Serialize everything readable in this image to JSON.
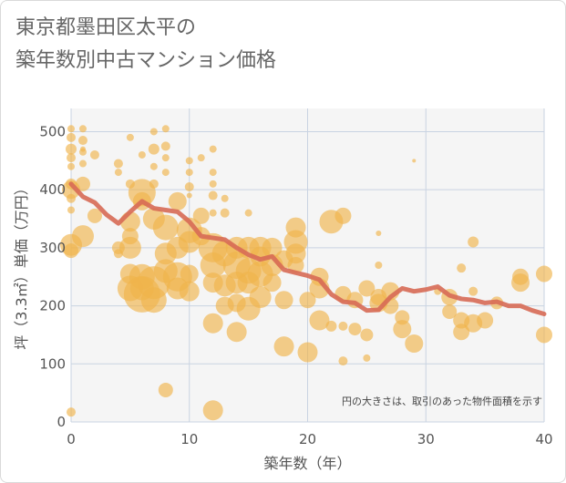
{
  "title_lines": [
    "東京都墨田区太平の",
    "築年数別中古マンション価格"
  ],
  "chart_data": {
    "type": "scatter",
    "xlabel": "築年数（年）",
    "ylabel": "坪（3.3㎡）単価（万円）",
    "xlim": [
      0,
      40
    ],
    "ylim": [
      0,
      540
    ],
    "xticks": [
      0,
      10,
      20,
      30,
      40
    ],
    "yticks": [
      0,
      100,
      200,
      300,
      400,
      500
    ],
    "grid": true,
    "note": "円の大きさは、取引のあった物件面積を示す",
    "colors": {
      "bubble": "#f0b44c",
      "line": "#d76a55",
      "plot_bg": "#f5f5f5",
      "grid": "#c9d3e2"
    },
    "bubble_series": [
      {
        "x": 0,
        "y": 505,
        "s": 4
      },
      {
        "x": 0,
        "y": 490,
        "s": 5
      },
      {
        "x": 0,
        "y": 470,
        "s": 6
      },
      {
        "x": 0,
        "y": 455,
        "s": 5
      },
      {
        "x": 0,
        "y": 440,
        "s": 4
      },
      {
        "x": 0,
        "y": 410,
        "s": 6
      },
      {
        "x": 0,
        "y": 400,
        "s": 10
      },
      {
        "x": 0,
        "y": 385,
        "s": 5
      },
      {
        "x": 0,
        "y": 365,
        "s": 4
      },
      {
        "x": 0,
        "y": 305,
        "s": 12
      },
      {
        "x": 0,
        "y": 295,
        "s": 8
      },
      {
        "x": 0,
        "y": 17,
        "s": 5
      },
      {
        "x": 1,
        "y": 505,
        "s": 4
      },
      {
        "x": 1,
        "y": 485,
        "s": 5
      },
      {
        "x": 1,
        "y": 465,
        "s": 4
      },
      {
        "x": 1,
        "y": 445,
        "s": 4
      },
      {
        "x": 1,
        "y": 410,
        "s": 8
      },
      {
        "x": 1,
        "y": 320,
        "s": 12
      },
      {
        "x": 1,
        "y": 470,
        "s": 3
      },
      {
        "x": 2,
        "y": 460,
        "s": 5
      },
      {
        "x": 2,
        "y": 355,
        "s": 8
      },
      {
        "x": 4,
        "y": 445,
        "s": 5
      },
      {
        "x": 4,
        "y": 430,
        "s": 4
      },
      {
        "x": 4,
        "y": 300,
        "s": 7
      },
      {
        "x": 4,
        "y": 290,
        "s": 5
      },
      {
        "x": 5,
        "y": 490,
        "s": 4
      },
      {
        "x": 5,
        "y": 410,
        "s": 5
      },
      {
        "x": 5,
        "y": 345,
        "s": 11
      },
      {
        "x": 5,
        "y": 320,
        "s": 9
      },
      {
        "x": 5,
        "y": 300,
        "s": 12
      },
      {
        "x": 5,
        "y": 255,
        "s": 11
      },
      {
        "x": 5,
        "y": 230,
        "s": 14
      },
      {
        "x": 6,
        "y": 395,
        "s": 15
      },
      {
        "x": 6,
        "y": 380,
        "s": 10
      },
      {
        "x": 6,
        "y": 460,
        "s": 4
      },
      {
        "x": 6,
        "y": 250,
        "s": 14
      },
      {
        "x": 6,
        "y": 220,
        "s": 20
      },
      {
        "x": 6,
        "y": 230,
        "s": 13
      },
      {
        "x": 7,
        "y": 500,
        "s": 4
      },
      {
        "x": 7,
        "y": 470,
        "s": 6
      },
      {
        "x": 7,
        "y": 440,
        "s": 4
      },
      {
        "x": 7,
        "y": 410,
        "s": 5
      },
      {
        "x": 7,
        "y": 350,
        "s": 12
      },
      {
        "x": 7,
        "y": 240,
        "s": 18
      },
      {
        "x": 7,
        "y": 210,
        "s": 14
      },
      {
        "x": 8,
        "y": 505,
        "s": 4
      },
      {
        "x": 8,
        "y": 475,
        "s": 5
      },
      {
        "x": 8,
        "y": 455,
        "s": 4
      },
      {
        "x": 8,
        "y": 430,
        "s": 4
      },
      {
        "x": 8,
        "y": 335,
        "s": 14
      },
      {
        "x": 8,
        "y": 290,
        "s": 12
      },
      {
        "x": 8,
        "y": 260,
        "s": 13
      },
      {
        "x": 8,
        "y": 55,
        "s": 8
      },
      {
        "x": 9,
        "y": 380,
        "s": 10
      },
      {
        "x": 9,
        "y": 300,
        "s": 12
      },
      {
        "x": 9,
        "y": 250,
        "s": 16
      },
      {
        "x": 9,
        "y": 230,
        "s": 12
      },
      {
        "x": 10,
        "y": 450,
        "s": 4
      },
      {
        "x": 10,
        "y": 430,
        "s": 4
      },
      {
        "x": 10,
        "y": 405,
        "s": 5
      },
      {
        "x": 10,
        "y": 390,
        "s": 3
      },
      {
        "x": 10,
        "y": 330,
        "s": 14
      },
      {
        "x": 10,
        "y": 310,
        "s": 12
      },
      {
        "x": 10,
        "y": 255,
        "s": 10
      },
      {
        "x": 10,
        "y": 225,
        "s": 11
      },
      {
        "x": 11,
        "y": 455,
        "s": 4
      },
      {
        "x": 11,
        "y": 355,
        "s": 9
      },
      {
        "x": 11,
        "y": 320,
        "s": 10
      },
      {
        "x": 12,
        "y": 470,
        "s": 4
      },
      {
        "x": 12,
        "y": 430,
        "s": 4
      },
      {
        "x": 12,
        "y": 410,
        "s": 4
      },
      {
        "x": 12,
        "y": 390,
        "s": 5
      },
      {
        "x": 12,
        "y": 360,
        "s": 4
      },
      {
        "x": 12,
        "y": 300,
        "s": 16
      },
      {
        "x": 12,
        "y": 270,
        "s": 14
      },
      {
        "x": 12,
        "y": 240,
        "s": 11
      },
      {
        "x": 12,
        "y": 170,
        "s": 11
      },
      {
        "x": 12,
        "y": 20,
        "s": 11
      },
      {
        "x": 13,
        "y": 385,
        "s": 4
      },
      {
        "x": 13,
        "y": 360,
        "s": 5
      },
      {
        "x": 13,
        "y": 290,
        "s": 14
      },
      {
        "x": 13,
        "y": 235,
        "s": 12
      },
      {
        "x": 13,
        "y": 200,
        "s": 10
      },
      {
        "x": 14,
        "y": 300,
        "s": 12
      },
      {
        "x": 14,
        "y": 270,
        "s": 15
      },
      {
        "x": 14,
        "y": 240,
        "s": 12
      },
      {
        "x": 14,
        "y": 205,
        "s": 10
      },
      {
        "x": 14,
        "y": 155,
        "s": 11
      },
      {
        "x": 15,
        "y": 360,
        "s": 4
      },
      {
        "x": 15,
        "y": 300,
        "s": 12
      },
      {
        "x": 15,
        "y": 260,
        "s": 14
      },
      {
        "x": 15,
        "y": 240,
        "s": 12
      },
      {
        "x": 15,
        "y": 195,
        "s": 13
      },
      {
        "x": 16,
        "y": 300,
        "s": 12
      },
      {
        "x": 16,
        "y": 285,
        "s": 11
      },
      {
        "x": 16,
        "y": 255,
        "s": 14
      },
      {
        "x": 16,
        "y": 215,
        "s": 12
      },
      {
        "x": 17,
        "y": 300,
        "s": 11
      },
      {
        "x": 17,
        "y": 270,
        "s": 12
      },
      {
        "x": 17,
        "y": 240,
        "s": 10
      },
      {
        "x": 18,
        "y": 280,
        "s": 10
      },
      {
        "x": 18,
        "y": 210,
        "s": 10
      },
      {
        "x": 18,
        "y": 130,
        "s": 11
      },
      {
        "x": 19,
        "y": 335,
        "s": 11
      },
      {
        "x": 19,
        "y": 310,
        "s": 13
      },
      {
        "x": 19,
        "y": 290,
        "s": 11
      },
      {
        "x": 19,
        "y": 270,
        "s": 9
      },
      {
        "x": 20,
        "y": 210,
        "s": 9
      },
      {
        "x": 20,
        "y": 120,
        "s": 11
      },
      {
        "x": 21,
        "y": 250,
        "s": 10
      },
      {
        "x": 21,
        "y": 230,
        "s": 11
      },
      {
        "x": 21,
        "y": 175,
        "s": 11
      },
      {
        "x": 22,
        "y": 345,
        "s": 13
      },
      {
        "x": 22,
        "y": 165,
        "s": 6
      },
      {
        "x": 23,
        "y": 355,
        "s": 9
      },
      {
        "x": 23,
        "y": 220,
        "s": 9
      },
      {
        "x": 23,
        "y": 165,
        "s": 5
      },
      {
        "x": 23,
        "y": 105,
        "s": 5
      },
      {
        "x": 24,
        "y": 210,
        "s": 9
      },
      {
        "x": 24,
        "y": 160,
        "s": 7
      },
      {
        "x": 25,
        "y": 230,
        "s": 9
      },
      {
        "x": 25,
        "y": 150,
        "s": 7
      },
      {
        "x": 25,
        "y": 110,
        "s": 4
      },
      {
        "x": 26,
        "y": 325,
        "s": 3
      },
      {
        "x": 26,
        "y": 270,
        "s": 4
      },
      {
        "x": 26,
        "y": 215,
        "s": 9
      },
      {
        "x": 26,
        "y": 205,
        "s": 10
      },
      {
        "x": 27,
        "y": 225,
        "s": 10
      },
      {
        "x": 27,
        "y": 200,
        "s": 9
      },
      {
        "x": 28,
        "y": 180,
        "s": 8
      },
      {
        "x": 28,
        "y": 160,
        "s": 10
      },
      {
        "x": 29,
        "y": 450,
        "s": 2
      },
      {
        "x": 29,
        "y": 135,
        "s": 10
      },
      {
        "x": 31,
        "y": 225,
        "s": 4
      },
      {
        "x": 32,
        "y": 215,
        "s": 9
      },
      {
        "x": 32,
        "y": 190,
        "s": 8
      },
      {
        "x": 33,
        "y": 265,
        "s": 5
      },
      {
        "x": 33,
        "y": 175,
        "s": 9
      },
      {
        "x": 33,
        "y": 155,
        "s": 9
      },
      {
        "x": 34,
        "y": 310,
        "s": 6
      },
      {
        "x": 34,
        "y": 225,
        "s": 5
      },
      {
        "x": 34,
        "y": 170,
        "s": 10
      },
      {
        "x": 35,
        "y": 175,
        "s": 9
      },
      {
        "x": 36,
        "y": 205,
        "s": 7
      },
      {
        "x": 38,
        "y": 250,
        "s": 9
      },
      {
        "x": 38,
        "y": 240,
        "s": 10
      },
      {
        "x": 40,
        "y": 255,
        "s": 9
      },
      {
        "x": 40,
        "y": 150,
        "s": 9
      }
    ],
    "line_series": {
      "x": [
        0,
        1,
        2,
        3,
        4,
        5,
        6,
        7,
        8,
        9,
        10,
        11,
        12,
        13,
        14,
        15,
        16,
        17,
        18,
        19,
        20,
        21,
        22,
        23,
        24,
        25,
        26,
        27,
        28,
        29,
        30,
        31,
        32,
        33,
        34,
        35,
        36,
        37,
        38,
        39,
        40
      ],
      "y": [
        410,
        388,
        378,
        357,
        342,
        362,
        380,
        368,
        365,
        362,
        345,
        320,
        317,
        314,
        300,
        288,
        280,
        285,
        262,
        257,
        252,
        245,
        220,
        207,
        205,
        192,
        193,
        215,
        230,
        225,
        228,
        233,
        218,
        212,
        210,
        205,
        207,
        200,
        200,
        192,
        186
      ]
    }
  }
}
